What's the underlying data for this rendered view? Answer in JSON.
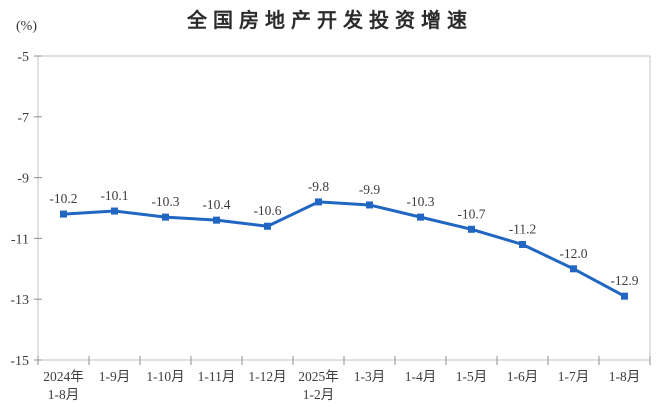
{
  "chart_data": {
    "type": "line",
    "title": "全国房地产开发投资增速",
    "unit_label": "(%)",
    "categories": [
      "2024年\n1-8月",
      "1-9月",
      "1-10月",
      "1-11月",
      "1-12月",
      "2025年\n1-2月",
      "1-3月",
      "1-4月",
      "1-5月",
      "1-6月",
      "1-7月",
      "1-8月"
    ],
    "values": [
      -10.2,
      -10.1,
      -10.3,
      -10.4,
      -10.6,
      -9.8,
      -9.9,
      -10.3,
      -10.7,
      -11.2,
      -12.0,
      -12.9
    ],
    "point_labels": [
      "-10.2",
      "-10.1",
      "-10.3",
      "-10.4",
      "-10.6",
      "-9.8",
      "-9.9",
      "-10.3",
      "-10.7",
      "-11.2",
      "-12.0",
      "-12.9"
    ],
    "ylim": [
      -15,
      -5
    ],
    "yticks": [
      -5,
      -7,
      -9,
      -11,
      -13,
      -15
    ],
    "grid": false,
    "legend": "none",
    "line_color": "#2166c2",
    "marker": "square",
    "marker_color": "#2166c2",
    "axis_border_color": "#c3c3c3",
    "tick_color": "#8f8f8f",
    "label_text_color": "#3d3d3d",
    "title_color": "#2b2b2b"
  }
}
